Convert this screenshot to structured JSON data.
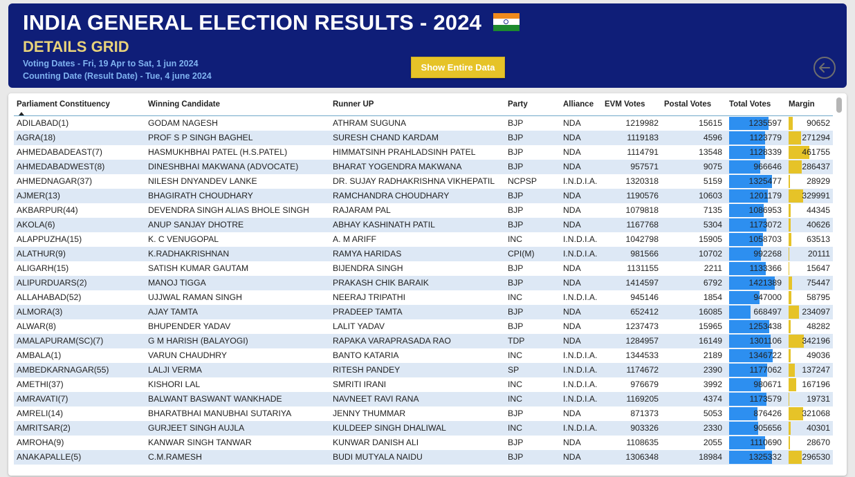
{
  "header": {
    "title": "INDIA GENERAL ELECTION RESULTS - 2024",
    "subtitle": "DETAILS GRID",
    "voting_dates": "Voting Dates - Fri, 19 Apr to Sat, 1 jun 2024",
    "counting_date": "Counting Date (Result Date) - Tue, 4 june 2024",
    "show_button": "Show Entire Data",
    "flag_icon": "india-flag-icon",
    "back_icon": "back-arrow-icon"
  },
  "colors": {
    "header_bg": "#0f1e78",
    "accent_yellow": "#e6c328",
    "total_bar": "#2d8ff0",
    "row_alt": "#dde8f5"
  },
  "table": {
    "columns": [
      "Parliament Constituency",
      "Winning Candidate",
      "Runner UP",
      "Party",
      "Alliance",
      "EVM Votes",
      "Postal Votes",
      "Total Votes",
      "Margin"
    ],
    "max_total": 1421389,
    "max_margin": 461755,
    "rows": [
      [
        "ADILABAD(1)",
        "GODAM NAGESH",
        "ATHRAM SUGUNA",
        "BJP",
        "NDA",
        "1219982",
        "15615",
        "1235597",
        "90652"
      ],
      [
        "AGRA(18)",
        "PROF S P SINGH BAGHEL",
        "SURESH CHAND KARDAM",
        "BJP",
        "NDA",
        "1119183",
        "4596",
        "1123779",
        "271294"
      ],
      [
        "AHMEDABADEAST(7)",
        "HASMUKHBHAI PATEL (H.S.PATEL)",
        "HIMMATSINH PRAHLADSINH PATEL",
        "BJP",
        "NDA",
        "1114791",
        "13548",
        "1128339",
        "461755"
      ],
      [
        "AHMEDABADWEST(8)",
        "DINESHBHAI MAKWANA (ADVOCATE)",
        "BHARAT YOGENDRA MAKWANA",
        "BJP",
        "NDA",
        "957571",
        "9075",
        "966646",
        "286437"
      ],
      [
        "AHMEDNAGAR(37)",
        "NILESH DNYANDEV LANKE",
        "DR. SUJAY RADHAKRISHNA VIKHEPATIL",
        "NCPSP",
        "I.N.D.I.A.",
        "1320318",
        "5159",
        "1325477",
        "28929"
      ],
      [
        "AJMER(13)",
        "BHAGIRATH CHOUDHARY",
        "RAMCHANDRA CHOUDHARY",
        "BJP",
        "NDA",
        "1190576",
        "10603",
        "1201179",
        "329991"
      ],
      [
        "AKBARPUR(44)",
        "DEVENDRA SINGH ALIAS BHOLE SINGH",
        "RAJARAM PAL",
        "BJP",
        "NDA",
        "1079818",
        "7135",
        "1086953",
        "44345"
      ],
      [
        "AKOLA(6)",
        "ANUP SANJAY DHOTRE",
        "ABHAY KASHINATH PATIL",
        "BJP",
        "NDA",
        "1167768",
        "5304",
        "1173072",
        "40626"
      ],
      [
        "ALAPPUZHA(15)",
        "K. C VENUGOPAL",
        "A. M ARIFF",
        "INC",
        "I.N.D.I.A.",
        "1042798",
        "15905",
        "1058703",
        "63513"
      ],
      [
        "ALATHUR(9)",
        "K.RADHAKRISHNAN",
        "RAMYA HARIDAS",
        "CPI(M)",
        "I.N.D.I.A.",
        "981566",
        "10702",
        "992268",
        "20111"
      ],
      [
        "ALIGARH(15)",
        "SATISH KUMAR GAUTAM",
        "BIJENDRA SINGH",
        "BJP",
        "NDA",
        "1131155",
        "2211",
        "1133366",
        "15647"
      ],
      [
        "ALIPURDUARS(2)",
        "MANOJ TIGGA",
        "PRAKASH CHIK BARAIK",
        "BJP",
        "NDA",
        "1414597",
        "6792",
        "1421389",
        "75447"
      ],
      [
        "ALLAHABAD(52)",
        "UJJWAL RAMAN SINGH",
        "NEERAJ TRIPATHI",
        "INC",
        "I.N.D.I.A.",
        "945146",
        "1854",
        "947000",
        "58795"
      ],
      [
        "ALMORA(3)",
        "AJAY TAMTA",
        "PRADEEP TAMTA",
        "BJP",
        "NDA",
        "652412",
        "16085",
        "668497",
        "234097"
      ],
      [
        "ALWAR(8)",
        "BHUPENDER YADAV",
        "LALIT YADAV",
        "BJP",
        "NDA",
        "1237473",
        "15965",
        "1253438",
        "48282"
      ],
      [
        "AMALAPURAM(SC)(7)",
        "G M HARISH (BALAYOGI)",
        "RAPAKA VARAPRASADA RAO",
        "TDP",
        "NDA",
        "1284957",
        "16149",
        "1301106",
        "342196"
      ],
      [
        "AMBALA(1)",
        "VARUN CHAUDHRY",
        "BANTO KATARIA",
        "INC",
        "I.N.D.I.A.",
        "1344533",
        "2189",
        "1346722",
        "49036"
      ],
      [
        "AMBEDKARNAGAR(55)",
        "LALJI VERMA",
        "RITESH PANDEY",
        "SP",
        "I.N.D.I.A.",
        "1174672",
        "2390",
        "1177062",
        "137247"
      ],
      [
        "AMETHI(37)",
        "KISHORI LAL",
        "SMRITI IRANI",
        "INC",
        "I.N.D.I.A.",
        "976679",
        "3992",
        "980671",
        "167196"
      ],
      [
        "AMRAVATI(7)",
        "BALWANT BASWANT WANKHADE",
        "NAVNEET RAVI RANA",
        "INC",
        "I.N.D.I.A.",
        "1169205",
        "4374",
        "1173579",
        "19731"
      ],
      [
        "AMRELI(14)",
        "BHARATBHAI MANUBHAI SUTARIYA",
        "JENNY THUMMAR",
        "BJP",
        "NDA",
        "871373",
        "5053",
        "876426",
        "321068"
      ],
      [
        "AMRITSAR(2)",
        "GURJEET SINGH AUJLA",
        "KULDEEP SINGH DHALIWAL",
        "INC",
        "I.N.D.I.A.",
        "903326",
        "2330",
        "905656",
        "40301"
      ],
      [
        "AMROHA(9)",
        "KANWAR SINGH TANWAR",
        "KUNWAR DANISH ALI",
        "BJP",
        "NDA",
        "1108635",
        "2055",
        "1110690",
        "28670"
      ],
      [
        "ANAKAPALLE(5)",
        "C.M.RAMESH",
        "BUDI MUTYALA NAIDU",
        "BJP",
        "NDA",
        "1306348",
        "18984",
        "1325332",
        "296530"
      ]
    ]
  }
}
